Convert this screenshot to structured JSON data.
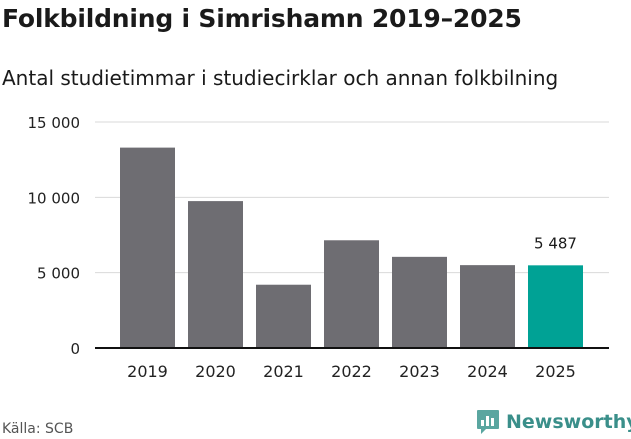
{
  "header": {
    "title": "Folkbildning i Simrishamn 2019–2025",
    "subtitle": "Antal studietimmar i studiecirklar och annan folkbilning"
  },
  "footer": {
    "source": "Källa: SCB",
    "brand": "Newsworthy",
    "brand_icon": "newsworthy-logo-icon"
  },
  "colors": {
    "bar": "#6e6d72",
    "highlight": "#00a295",
    "grid": "#d9d9d9",
    "brand": "#3a8f8a"
  },
  "chart_data": {
    "type": "bar",
    "title": "Folkbildning i Simrishamn 2019–2025",
    "subtitle": "Antal studietimmar i studiecirklar och annan folkbilning",
    "xlabel": "",
    "ylabel": "",
    "categories": [
      "2019",
      "2020",
      "2021",
      "2022",
      "2023",
      "2024",
      "2025"
    ],
    "values": [
      13300,
      9750,
      4200,
      7150,
      6050,
      5500,
      5487
    ],
    "highlight_index": 6,
    "data_labels": [
      {
        "index": 6,
        "text": "5 487"
      }
    ],
    "ylim": [
      0,
      15000
    ],
    "yticks": [
      0,
      5000,
      10000,
      15000
    ],
    "ytick_labels": [
      "0",
      "5 000",
      "10 000",
      "15 000"
    ],
    "grid": true,
    "legend": "none"
  }
}
